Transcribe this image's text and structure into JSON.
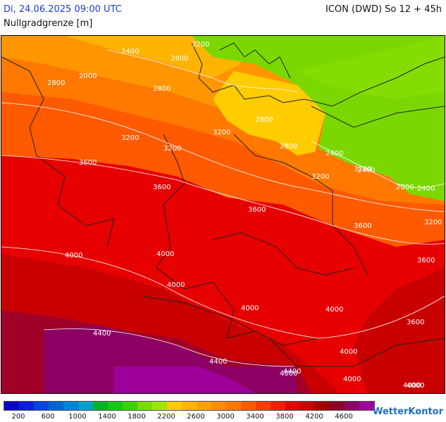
{
  "header": {
    "date_time": "Di, 24.06.2025 09:00 UTC",
    "model_run": "ICON (DWD) So 12 + 45h",
    "parameter": "Nullgradgrenze [m]"
  },
  "legend": {
    "colors": [
      "#0a00c8",
      "#0a1edc",
      "#0046dc",
      "#0064d2",
      "#0082d2",
      "#00a0c8",
      "#00b428",
      "#14c814",
      "#3cd200",
      "#78dc00",
      "#a0e600",
      "#ffcc00",
      "#ffb400",
      "#ffa000",
      "#ff8c00",
      "#ff7800",
      "#ff5a00",
      "#ff3c00",
      "#f51e00",
      "#e60000",
      "#c80000",
      "#a00000",
      "#8c0028",
      "#8c0064",
      "#a0009a"
    ],
    "tick_labels": [
      "200",
      "600",
      "1000",
      "1400",
      "1800",
      "2200",
      "2600",
      "3000",
      "3400",
      "3800",
      "4200",
      "4600"
    ]
  },
  "map": {
    "contour_labels": [
      "2400",
      "2800",
      "3200",
      "2000",
      "2800",
      "2800",
      "3200",
      "2800",
      "3200",
      "3600",
      "3200",
      "2800",
      "2400",
      "3200",
      "3200",
      "2400",
      "2000",
      "2400",
      "3600",
      "3600",
      "3600",
      "3200",
      "3600",
      "4000",
      "4000",
      "4000",
      "4000",
      "4000",
      "3600",
      "4000",
      "4400",
      "4400",
      "4000",
      "4000",
      "4400",
      "4000",
      "4000"
    ]
  },
  "brand": "WetterKontor"
}
